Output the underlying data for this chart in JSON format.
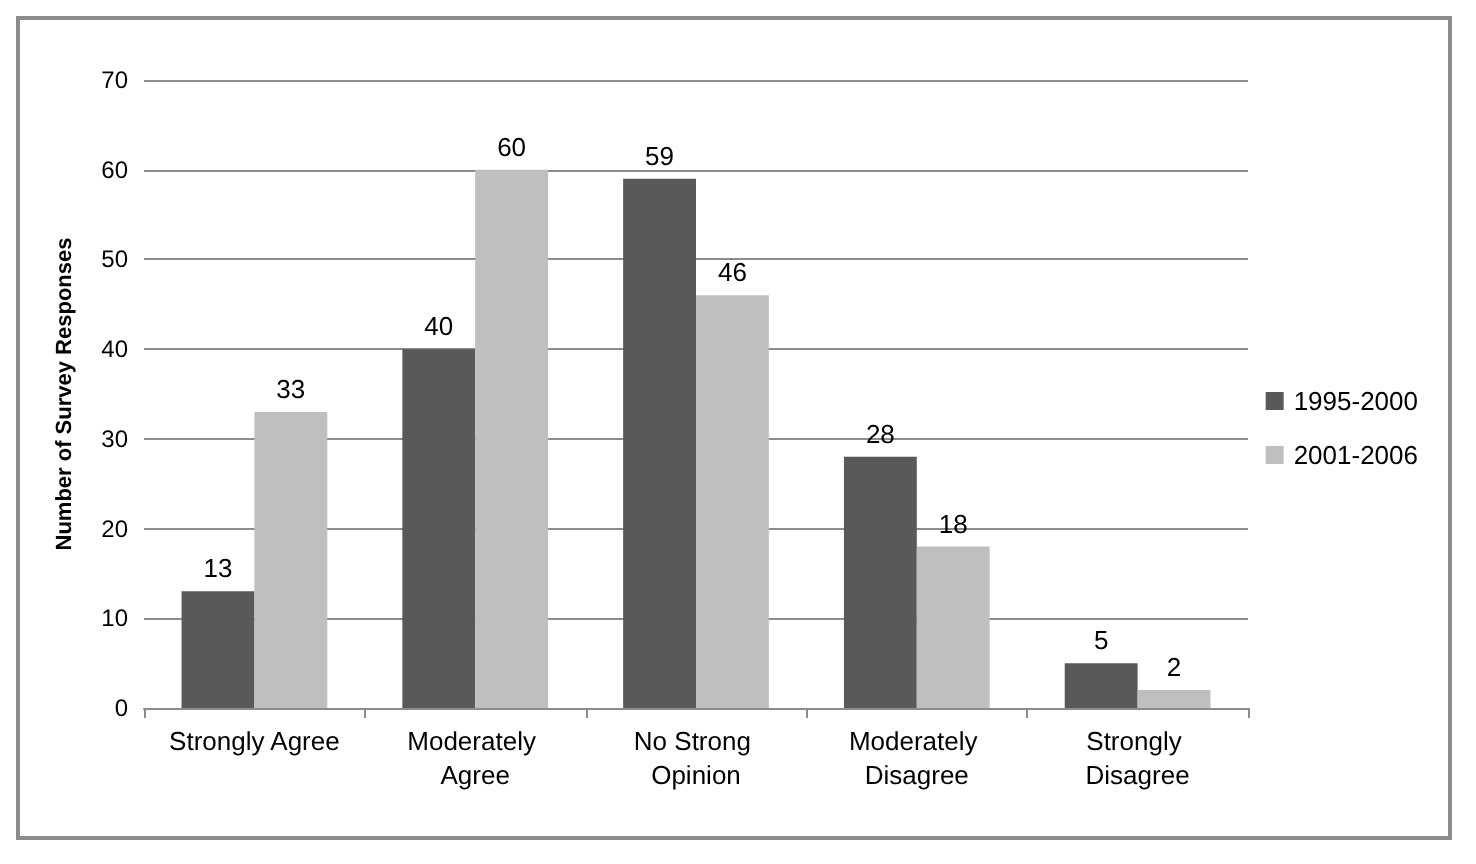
{
  "chart_data": {
    "type": "bar",
    "ylabel": "Number of Survey Responses",
    "categories": [
      "Strongly Agree",
      "Moderately Agree",
      "No Strong Opinion",
      "Moderately Disagree",
      "Strongly Disagree"
    ],
    "series": [
      {
        "name": "1995-2000",
        "color": "#595959",
        "values": [
          13,
          40,
          59,
          28,
          5
        ]
      },
      {
        "name": "2001-2006",
        "color": "#bfbfbf",
        "values": [
          33,
          60,
          46,
          18,
          2
        ]
      }
    ],
    "ylim": [
      0,
      70
    ],
    "yticks": [
      0,
      10,
      20,
      30,
      40,
      50,
      60,
      70
    ],
    "grid": "y",
    "legend": "right",
    "data_labels": true
  }
}
